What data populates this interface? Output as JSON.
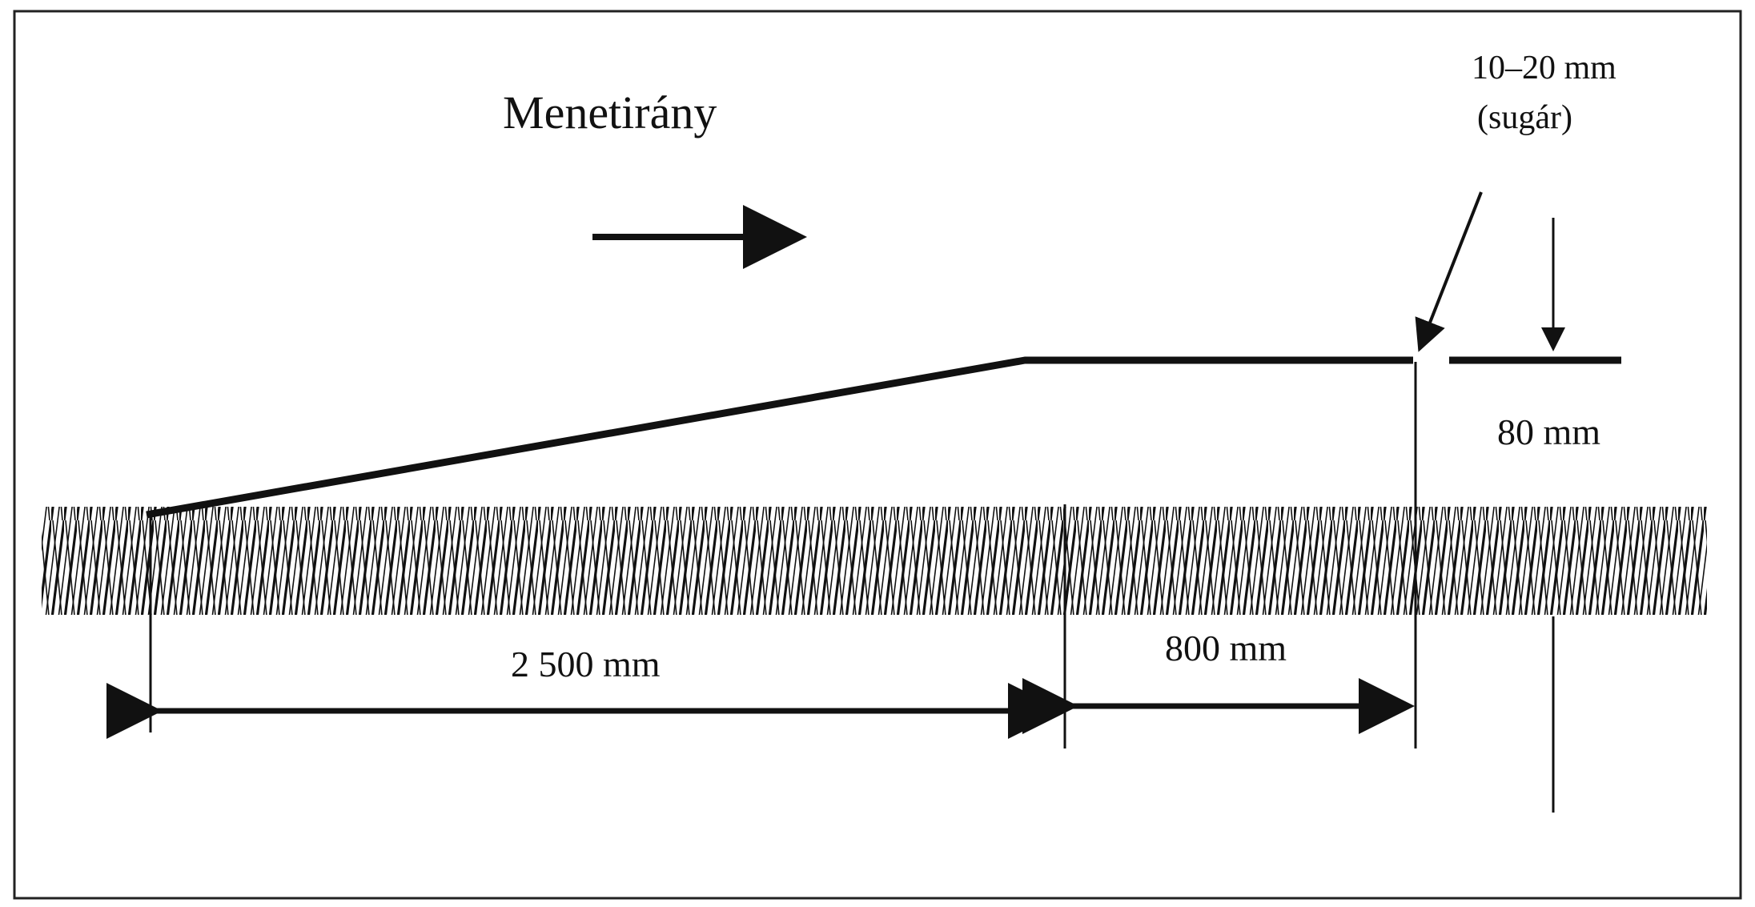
{
  "labels": {
    "direction": "Menetirány",
    "radius_value": "10–20 mm",
    "radius_note": "(sugár)",
    "height": "80 mm",
    "ramp_length": "2 500 mm",
    "flat_length": "800 mm"
  },
  "colors": {
    "ink": "#111111",
    "background": "#ffffff",
    "frame": "#222222"
  }
}
